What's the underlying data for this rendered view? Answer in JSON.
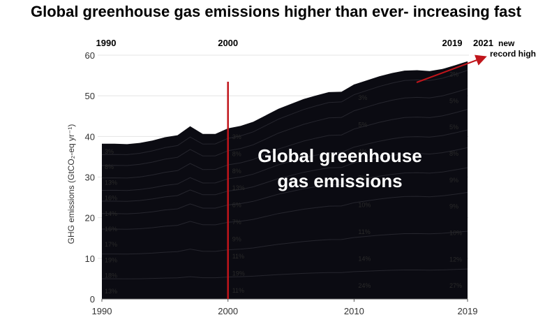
{
  "title": "Global greenhouse gas emissions higher than ever- increasing fast",
  "chart_data": {
    "type": "area",
    "ylabel": "GHG emissions (GtCO₂-eq yr⁻¹)",
    "ylim": [
      0,
      60
    ],
    "xlim": [
      1990,
      2019
    ],
    "y_ticks": [
      "0",
      "10",
      "20",
      "30",
      "40",
      "50",
      "60"
    ],
    "x_ticks": [
      "1990",
      "2000",
      "2010",
      "2019"
    ],
    "top_year_labels": [
      "1990",
      "2000",
      "2019"
    ],
    "x": [
      1990,
      1991,
      1992,
      1993,
      1994,
      1995,
      1996,
      1997,
      1998,
      1999,
      2000,
      2001,
      2002,
      2003,
      2004,
      2005,
      2006,
      2007,
      2008,
      2009,
      2010,
      2011,
      2012,
      2013,
      2014,
      2015,
      2016,
      2017,
      2018,
      2019
    ],
    "total": [
      38.2,
      38.2,
      38.1,
      38.4,
      39.0,
      39.8,
      40.3,
      42.5,
      40.6,
      40.6,
      42.0,
      42.6,
      43.6,
      45.2,
      46.8,
      48.0,
      49.2,
      50.1,
      50.9,
      51.0,
      52.8,
      53.8,
      54.8,
      55.6,
      56.2,
      56.3,
      56.1,
      56.6,
      57.5,
      58.5
    ],
    "overlay_text": [
      "Global greenhouse",
      "gas emissions"
    ],
    "marker_year": 2000,
    "annotation_year": "2021",
    "annotation_text": [
      "new",
      "record high"
    ],
    "accent_color": "#c0151b",
    "fill_color": "#0b0b12",
    "share_labels_1990": [
      "13%",
      "18%",
      "19%",
      "17%",
      "16%",
      "14%",
      "16%",
      "13%",
      "8%",
      "3%"
    ],
    "share_labels_2000": [
      "11%",
      "19%",
      "11%",
      "9%",
      "7%",
      "6%",
      "13%",
      "8%",
      "8%",
      "3%"
    ],
    "share_labels_2010": [
      "24%",
      "14%",
      "11%",
      "10%",
      "7%",
      "4%",
      "5%",
      "3%"
    ],
    "share_labels_2019": [
      "27%",
      "12%",
      "10%",
      "9%",
      "9%",
      "8%",
      "5%",
      "5%",
      "2%"
    ]
  }
}
